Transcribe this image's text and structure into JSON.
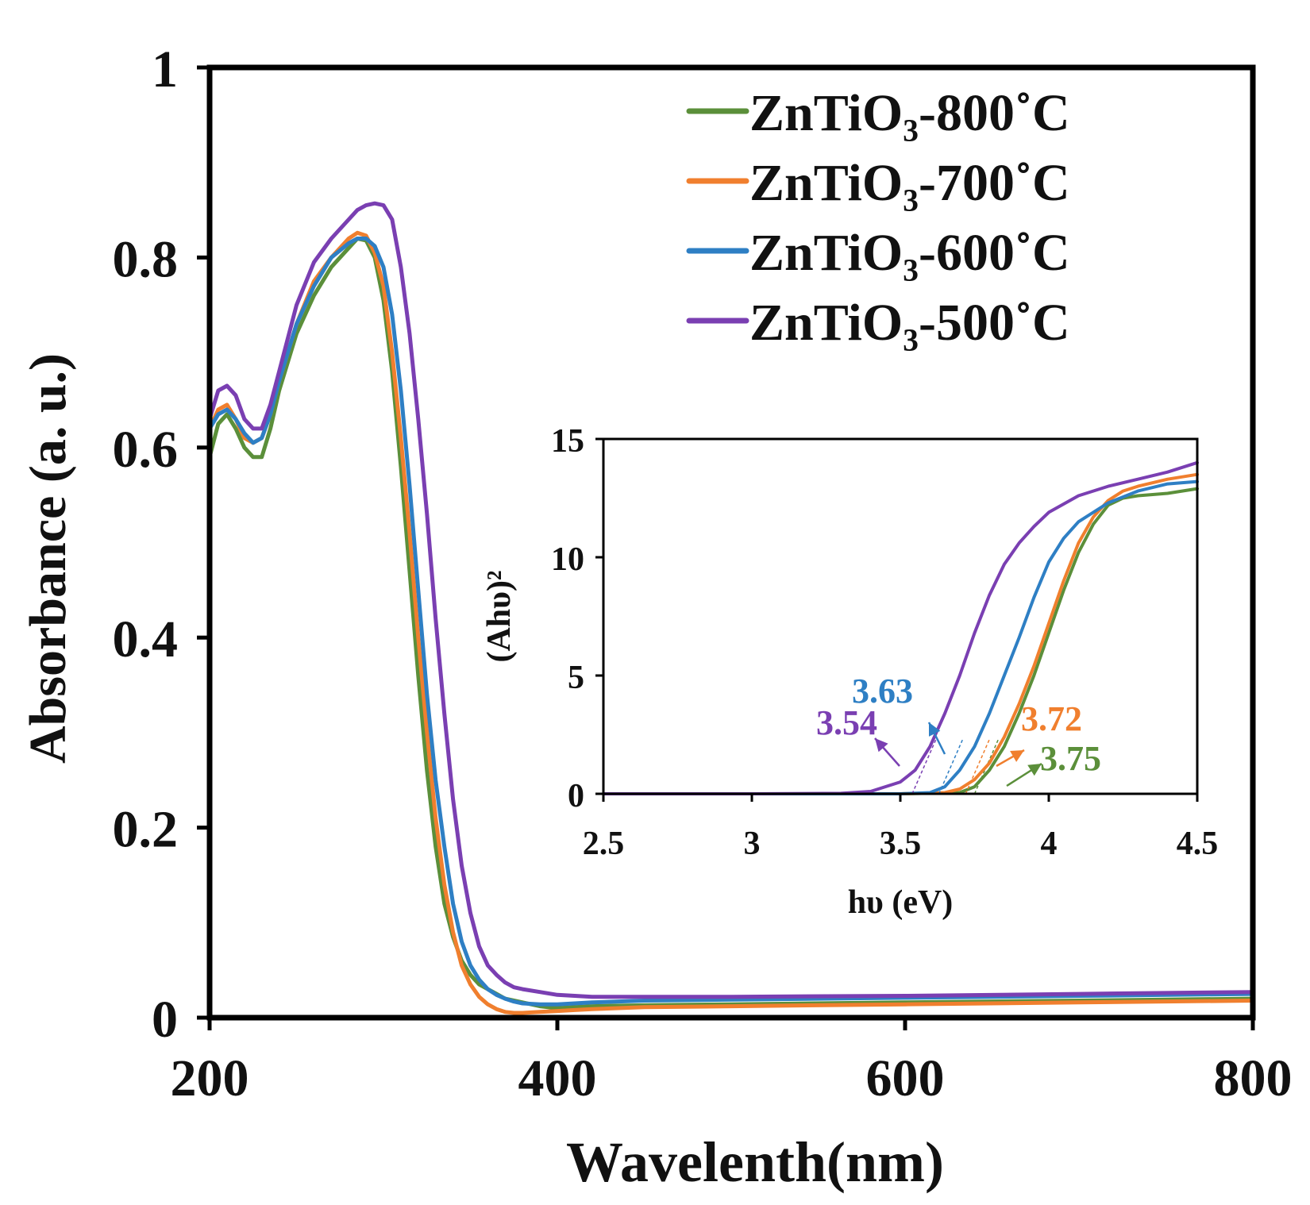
{
  "chart_data": [
    {
      "type": "line",
      "title": "",
      "xlabel": "Wavelenth(nm)",
      "ylabel": "Absorbance (a. u.)",
      "xlim": [
        200,
        800
      ],
      "ylim": [
        0,
        1
      ],
      "xticks": [
        200,
        400,
        600,
        800
      ],
      "yticks": [
        0,
        0.2,
        0.4,
        0.6,
        0.8,
        1
      ],
      "grid": false,
      "legend_position": "top-right",
      "series": [
        {
          "name": "ZnTiO₃-800˚C",
          "color": "#5b8f3a",
          "x": [
            200,
            205,
            210,
            215,
            220,
            225,
            230,
            235,
            240,
            250,
            260,
            270,
            280,
            285,
            290,
            295,
            300,
            305,
            310,
            315,
            320,
            325,
            330,
            335,
            340,
            345,
            350,
            355,
            360,
            365,
            370,
            375,
            380,
            390,
            400,
            410,
            420,
            450,
            500,
            600,
            700,
            800
          ],
          "y": [
            0.59,
            0.625,
            0.635,
            0.62,
            0.6,
            0.59,
            0.59,
            0.62,
            0.66,
            0.72,
            0.76,
            0.79,
            0.81,
            0.82,
            0.818,
            0.8,
            0.755,
            0.68,
            0.58,
            0.47,
            0.36,
            0.26,
            0.18,
            0.12,
            0.085,
            0.06,
            0.045,
            0.035,
            0.03,
            0.025,
            0.02,
            0.018,
            0.016,
            0.012,
            0.01,
            0.011,
            0.012,
            0.013,
            0.014,
            0.016,
            0.018,
            0.02
          ]
        },
        {
          "name": "ZnTiO₃-700˚C",
          "color": "#f07f2e",
          "x": [
            200,
            205,
            210,
            215,
            220,
            225,
            230,
            235,
            240,
            250,
            260,
            270,
            280,
            285,
            290,
            295,
            300,
            305,
            310,
            315,
            320,
            325,
            330,
            335,
            340,
            345,
            350,
            355,
            360,
            365,
            370,
            375,
            380,
            390,
            400,
            410,
            420,
            450,
            500,
            600,
            700,
            800
          ],
          "y": [
            0.62,
            0.64,
            0.645,
            0.63,
            0.61,
            0.605,
            0.61,
            0.635,
            0.67,
            0.73,
            0.775,
            0.8,
            0.82,
            0.826,
            0.823,
            0.805,
            0.77,
            0.7,
            0.61,
            0.51,
            0.4,
            0.3,
            0.21,
            0.14,
            0.09,
            0.055,
            0.035,
            0.022,
            0.014,
            0.009,
            0.006,
            0.005,
            0.005,
            0.006,
            0.007,
            0.008,
            0.009,
            0.011,
            0.012,
            0.014,
            0.016,
            0.018
          ]
        },
        {
          "name": "ZnTiO₃-600˚C",
          "color": "#2e7fc4",
          "x": [
            200,
            205,
            210,
            215,
            220,
            225,
            230,
            235,
            240,
            250,
            260,
            270,
            280,
            285,
            290,
            295,
            300,
            305,
            310,
            315,
            320,
            325,
            330,
            335,
            340,
            345,
            350,
            355,
            360,
            365,
            370,
            375,
            380,
            390,
            400,
            410,
            420,
            450,
            500,
            600,
            700,
            800
          ],
          "y": [
            0.62,
            0.635,
            0.64,
            0.63,
            0.615,
            0.605,
            0.61,
            0.635,
            0.67,
            0.73,
            0.77,
            0.8,
            0.815,
            0.82,
            0.82,
            0.812,
            0.79,
            0.74,
            0.66,
            0.56,
            0.45,
            0.34,
            0.25,
            0.18,
            0.12,
            0.08,
            0.055,
            0.04,
            0.03,
            0.024,
            0.02,
            0.017,
            0.015,
            0.014,
            0.014,
            0.015,
            0.016,
            0.018,
            0.019,
            0.021,
            0.023,
            0.025
          ]
        },
        {
          "name": "ZnTiO₃-500˚C",
          "color": "#7a3fb2",
          "x": [
            200,
            205,
            210,
            215,
            220,
            225,
            230,
            235,
            240,
            250,
            260,
            270,
            280,
            285,
            290,
            295,
            300,
            305,
            310,
            315,
            320,
            325,
            330,
            335,
            340,
            345,
            350,
            355,
            360,
            365,
            370,
            375,
            380,
            390,
            400,
            410,
            420,
            450,
            500,
            600,
            700,
            800
          ],
          "y": [
            0.63,
            0.66,
            0.665,
            0.655,
            0.63,
            0.62,
            0.62,
            0.645,
            0.68,
            0.75,
            0.795,
            0.82,
            0.84,
            0.85,
            0.855,
            0.857,
            0.855,
            0.84,
            0.79,
            0.72,
            0.63,
            0.53,
            0.42,
            0.32,
            0.23,
            0.16,
            0.11,
            0.075,
            0.055,
            0.045,
            0.037,
            0.032,
            0.03,
            0.027,
            0.024,
            0.023,
            0.022,
            0.022,
            0.022,
            0.023,
            0.025,
            0.027
          ]
        }
      ]
    },
    {
      "type": "line",
      "title": "",
      "xlabel": "hυ (eV)",
      "ylabel": "(Ahυ)²",
      "xlim": [
        2.5,
        4.5
      ],
      "ylim": [
        0,
        15
      ],
      "xticks": [
        "2.5",
        "3",
        "3.5",
        "4",
        "4.5"
      ],
      "yticks": [
        "0",
        "5",
        "10",
        "15"
      ],
      "grid": false,
      "series": [
        {
          "name": "ZnTiO₃-800˚C",
          "color": "#5b8f3a",
          "x": [
            2.5,
            3.0,
            3.5,
            3.7,
            3.75,
            3.8,
            3.85,
            3.9,
            3.95,
            4.0,
            4.05,
            4.1,
            4.15,
            4.2,
            4.25,
            4.3,
            4.4,
            4.5
          ],
          "y": [
            0,
            0,
            0,
            0.05,
            0.3,
            1.0,
            2.0,
            3.4,
            5.0,
            6.8,
            8.6,
            10.2,
            11.4,
            12.2,
            12.5,
            12.6,
            12.7,
            12.9
          ],
          "band_gap": "3.75"
        },
        {
          "name": "ZnTiO₃-700˚C",
          "color": "#f07f2e",
          "x": [
            2.5,
            3.0,
            3.5,
            3.65,
            3.7,
            3.75,
            3.8,
            3.85,
            3.9,
            3.95,
            4.0,
            4.05,
            4.1,
            4.15,
            4.2,
            4.25,
            4.3,
            4.4,
            4.5
          ],
          "y": [
            0,
            0,
            0,
            0.05,
            0.2,
            0.6,
            1.3,
            2.4,
            3.8,
            5.4,
            7.2,
            9.0,
            10.6,
            11.7,
            12.4,
            12.8,
            13.0,
            13.3,
            13.5
          ],
          "band_gap": "3.72"
        },
        {
          "name": "ZnTiO₃-600˚C",
          "color": "#2e7fc4",
          "x": [
            2.5,
            3.0,
            3.5,
            3.6,
            3.65,
            3.7,
            3.75,
            3.8,
            3.85,
            3.9,
            3.95,
            4.0,
            4.05,
            4.1,
            4.2,
            4.3,
            4.4,
            4.5
          ],
          "y": [
            0,
            0,
            0,
            0.05,
            0.3,
            1.0,
            2.0,
            3.4,
            5.0,
            6.6,
            8.3,
            9.8,
            10.8,
            11.5,
            12.3,
            12.8,
            13.1,
            13.2
          ],
          "band_gap": "3.63"
        },
        {
          "name": "ZnTiO₃-500˚C",
          "color": "#7a3fb2",
          "x": [
            2.5,
            3.0,
            3.3,
            3.4,
            3.5,
            3.55,
            3.6,
            3.65,
            3.7,
            3.75,
            3.8,
            3.85,
            3.9,
            3.95,
            4.0,
            4.1,
            4.2,
            4.3,
            4.4,
            4.5
          ],
          "y": [
            0,
            0,
            0.02,
            0.1,
            0.5,
            1.0,
            2.0,
            3.4,
            5.0,
            6.8,
            8.4,
            9.7,
            10.6,
            11.3,
            11.9,
            12.6,
            13.0,
            13.3,
            13.6,
            14.0
          ],
          "band_gap": "3.54"
        }
      ]
    }
  ]
}
